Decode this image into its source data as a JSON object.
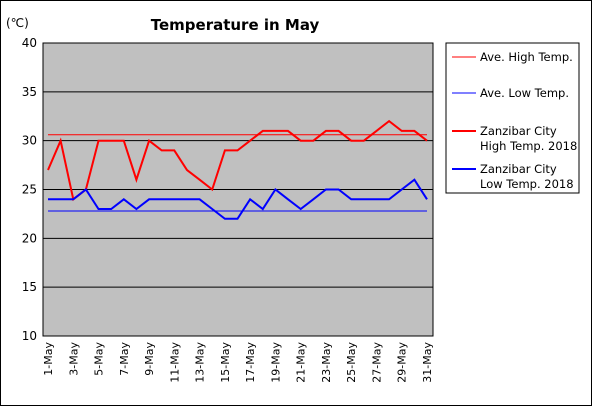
{
  "chart_data": {
    "type": "line",
    "title": "Temperature in May",
    "unit_label": "(℃)",
    "ylim": [
      10,
      40
    ],
    "y_ticks": [
      "10",
      "15",
      "20",
      "25",
      "30",
      "35",
      "40"
    ],
    "x_tick_labels": [
      "1-May",
      "3-May",
      "5-May",
      "7-May",
      "9-May",
      "11-May",
      "13-May",
      "15-May",
      "17-May",
      "19-May",
      "21-May",
      "23-May",
      "25-May",
      "27-May",
      "29-May",
      "31-May"
    ],
    "x": [
      1,
      2,
      3,
      4,
      5,
      6,
      7,
      8,
      9,
      10,
      11,
      12,
      13,
      14,
      15,
      16,
      17,
      18,
      19,
      20,
      21,
      22,
      23,
      24,
      25,
      26,
      27,
      28,
      29,
      30,
      31
    ],
    "grid": true,
    "plot_background": "#c0c0c0",
    "legend_position": "right",
    "series": [
      {
        "name": "Ave. High Temp.",
        "color": "#ff0000",
        "line_width": 1,
        "values": [
          30.6,
          30.6,
          30.6,
          30.6,
          30.6,
          30.6,
          30.6,
          30.6,
          30.6,
          30.6,
          30.6,
          30.6,
          30.6,
          30.6,
          30.6,
          30.6,
          30.6,
          30.6,
          30.6,
          30.6,
          30.6,
          30.6,
          30.6,
          30.6,
          30.6,
          30.6,
          30.6,
          30.6,
          30.6,
          30.6,
          30.6
        ]
      },
      {
        "name": "Ave. Low Temp.",
        "color": "#0000ff",
        "line_width": 1,
        "values": [
          22.8,
          22.8,
          22.8,
          22.8,
          22.8,
          22.8,
          22.8,
          22.8,
          22.8,
          22.8,
          22.8,
          22.8,
          22.8,
          22.8,
          22.8,
          22.8,
          22.8,
          22.8,
          22.8,
          22.8,
          22.8,
          22.8,
          22.8,
          22.8,
          22.8,
          22.8,
          22.8,
          22.8,
          22.8,
          22.8,
          22.8
        ]
      },
      {
        "name": "Zanzibar City High Temp. 2018",
        "legend_lines": [
          "Zanzibar City",
          "High Temp. 2018"
        ],
        "color": "#ff0000",
        "line_width": 2,
        "values": [
          27,
          30,
          24,
          25,
          30,
          30,
          30,
          26,
          30,
          29,
          29,
          27,
          26,
          25,
          29,
          29,
          30,
          31,
          31,
          31,
          30,
          30,
          31,
          31,
          30,
          30,
          31,
          32,
          31,
          31,
          30
        ]
      },
      {
        "name": "Zanzibar City Low Temp. 2018",
        "legend_lines": [
          "Zanzibar City",
          "Low Temp. 2018"
        ],
        "color": "#0000ff",
        "line_width": 2,
        "values": [
          24,
          24,
          24,
          25,
          23,
          23,
          24,
          23,
          24,
          24,
          24,
          24,
          24,
          23,
          22,
          22,
          24,
          23,
          25,
          24,
          23,
          24,
          25,
          25,
          24,
          24,
          24,
          24,
          25,
          26,
          24
        ]
      }
    ]
  }
}
